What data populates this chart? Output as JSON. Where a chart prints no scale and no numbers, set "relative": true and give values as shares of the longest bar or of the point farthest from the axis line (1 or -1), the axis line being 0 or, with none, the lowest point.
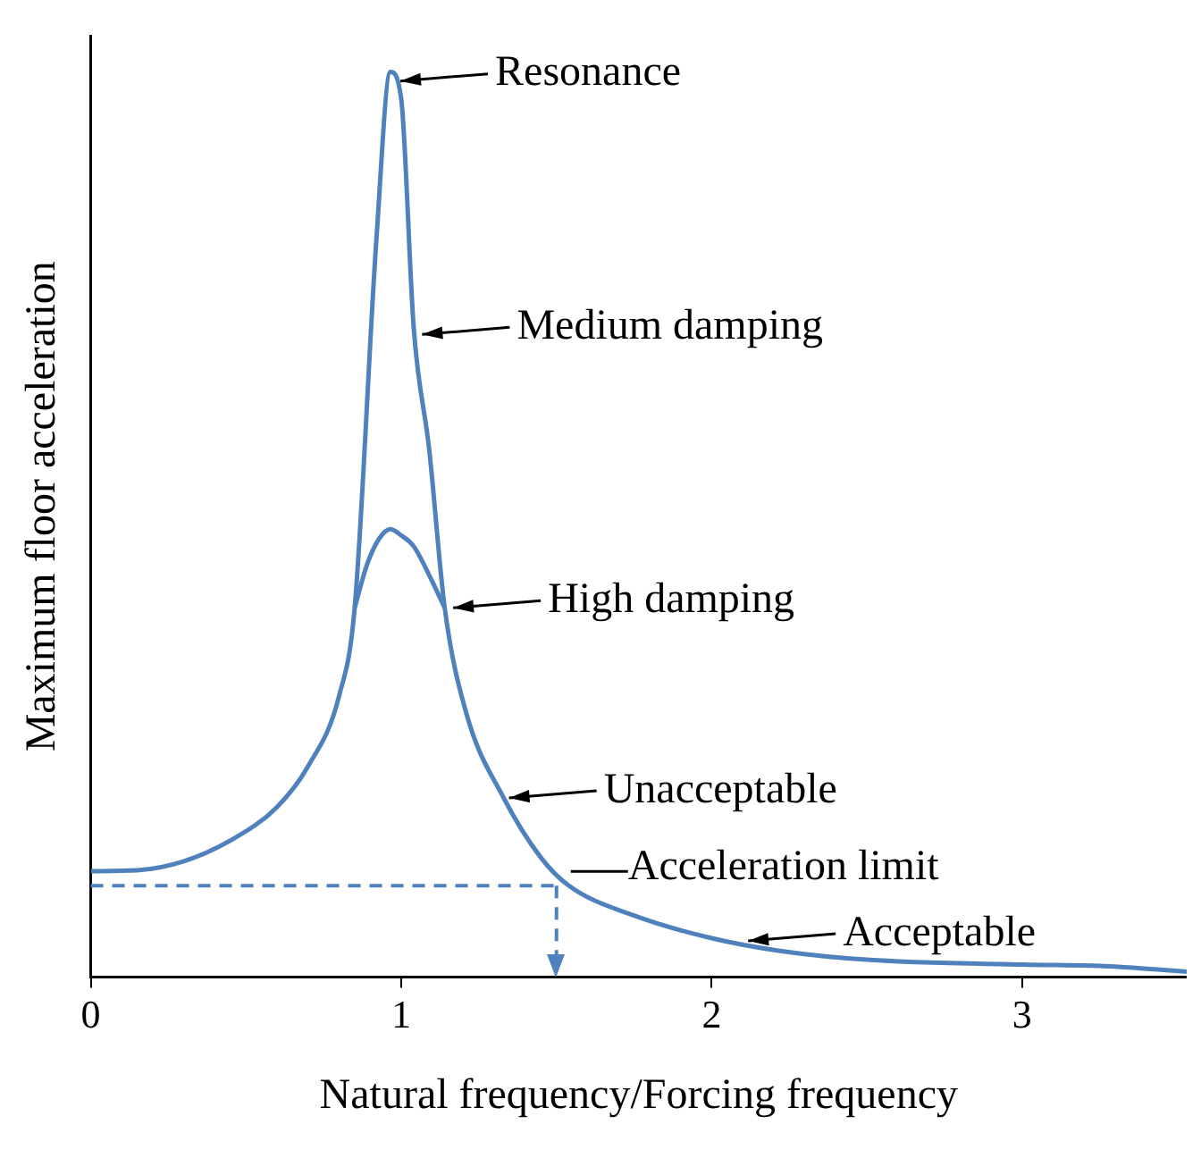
{
  "chart_data": {
    "type": "line",
    "relative": true,
    "xlabel": "Natural frequency/Forcing frequency",
    "ylabel": "Maximum floor acceleration",
    "xlim": [
      0,
      3.53
    ],
    "xticks": [
      0,
      1,
      2,
      3
    ],
    "grid": false,
    "legend": false,
    "marker": "none",
    "line_style": "solid",
    "series": [
      {
        "color": "#4f81bd",
        "x": [
          0,
          0.15,
          0.3,
          0.45,
          0.6,
          0.7,
          0.8,
          0.85,
          0.92,
          0.965,
          1.0,
          1.04,
          1.09,
          1.14,
          1.21,
          1.33,
          1.45,
          1.54,
          1.75,
          2.0,
          2.22,
          2.51,
          3.0,
          3.28,
          3.53
        ],
        "values": [
          0.117,
          0.118,
          0.128,
          0.151,
          0.188,
          0.233,
          0.311,
          0.408,
          0.815,
          1.0,
          0.97,
          0.718,
          0.583,
          0.408,
          0.291,
          0.198,
          0.132,
          0.101,
          0.068,
          0.043,
          0.029,
          0.019,
          0.014,
          0.012,
          0.006
        ]
      },
      {
        "color": "#4f81bd",
        "x": [
          0.85,
          0.89,
          0.93,
          0.965,
          1.0,
          1.04,
          1.1,
          1.14
        ],
        "values": [
          0.408,
          0.456,
          0.485,
          0.495,
          0.488,
          0.476,
          0.437,
          0.408
        ]
      }
    ],
    "ref_lines": [
      {
        "axis": "y",
        "value": 0.101,
        "label": "Acceleration limit",
        "color": "#4f81bd",
        "line_style": "dashed"
      },
      {
        "axis": "x",
        "value": 1.5,
        "color": "#4f81bd",
        "line_style": "dashed"
      }
    ],
    "annotations": [
      {
        "text": "Resonance",
        "x": 0.98,
        "y": 0.99
      },
      {
        "text": "Medium damping",
        "x": 1.05,
        "y": 0.71
      },
      {
        "text": "High damping",
        "x": 1.15,
        "y": 0.408
      },
      {
        "text": "Unacceptable",
        "x": 1.33,
        "y": 0.198
      },
      {
        "text": "Acceptable",
        "x": 2.1,
        "y": 0.04
      }
    ]
  }
}
